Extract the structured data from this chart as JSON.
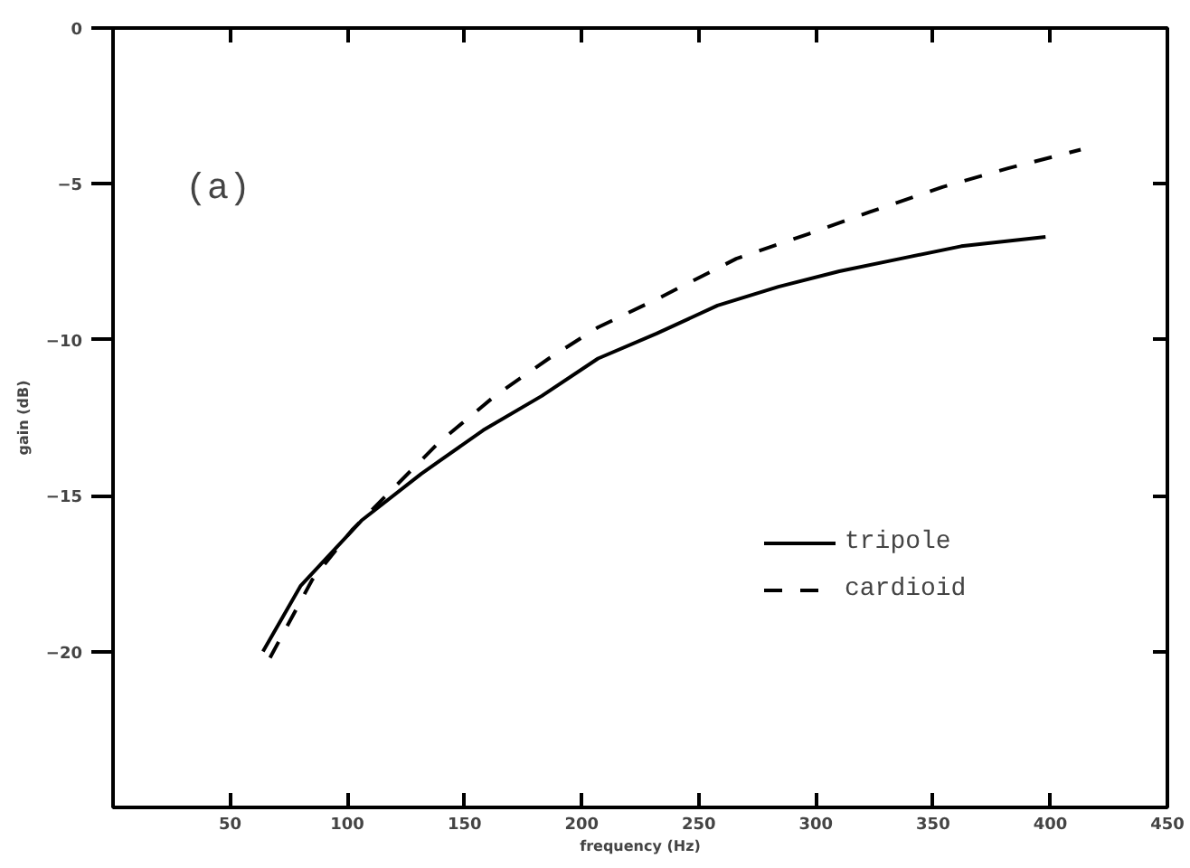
{
  "chart_data": {
    "type": "line",
    "xlabel": "frequency (Hz)",
    "ylabel": "gain (dB)",
    "annotations": [
      "(a)"
    ],
    "xlim": [
      0,
      450
    ],
    "ylim": [
      -25,
      0
    ],
    "xticks": [
      50,
      100,
      150,
      200,
      250,
      300,
      350,
      400,
      450
    ],
    "yticks": [
      0,
      -5,
      -10,
      -15,
      -20
    ],
    "grid": false,
    "legend": "bottom right",
    "marker": "none",
    "series": [
      {
        "name": "tripole",
        "color": "#000000",
        "line_style": "solid",
        "x": [
          64,
          80,
          106,
          131.5,
          158,
          183,
          207,
          232,
          258,
          284,
          310,
          336,
          362,
          398
        ],
        "values": [
          -20,
          -17.9,
          -15.8,
          -14.3,
          -12.9,
          -11.8,
          -10.6,
          -9.8,
          -8.9,
          -8.3,
          -7.8,
          -7.4,
          -7.0,
          -6.7
        ]
      },
      {
        "name": "cardioid",
        "color": "#000000",
        "line_style": "dashed",
        "x": [
          67,
          85,
          102,
          139,
          163,
          186,
          207,
          232,
          266,
          297,
          323,
          354,
          382,
          413
        ],
        "values": [
          -20.2,
          -17.7,
          -16.1,
          -13.3,
          -11.8,
          -10.6,
          -9.6,
          -8.7,
          -7.4,
          -6.6,
          -5.9,
          -5.1,
          -4.5,
          -3.9
        ]
      }
    ]
  }
}
